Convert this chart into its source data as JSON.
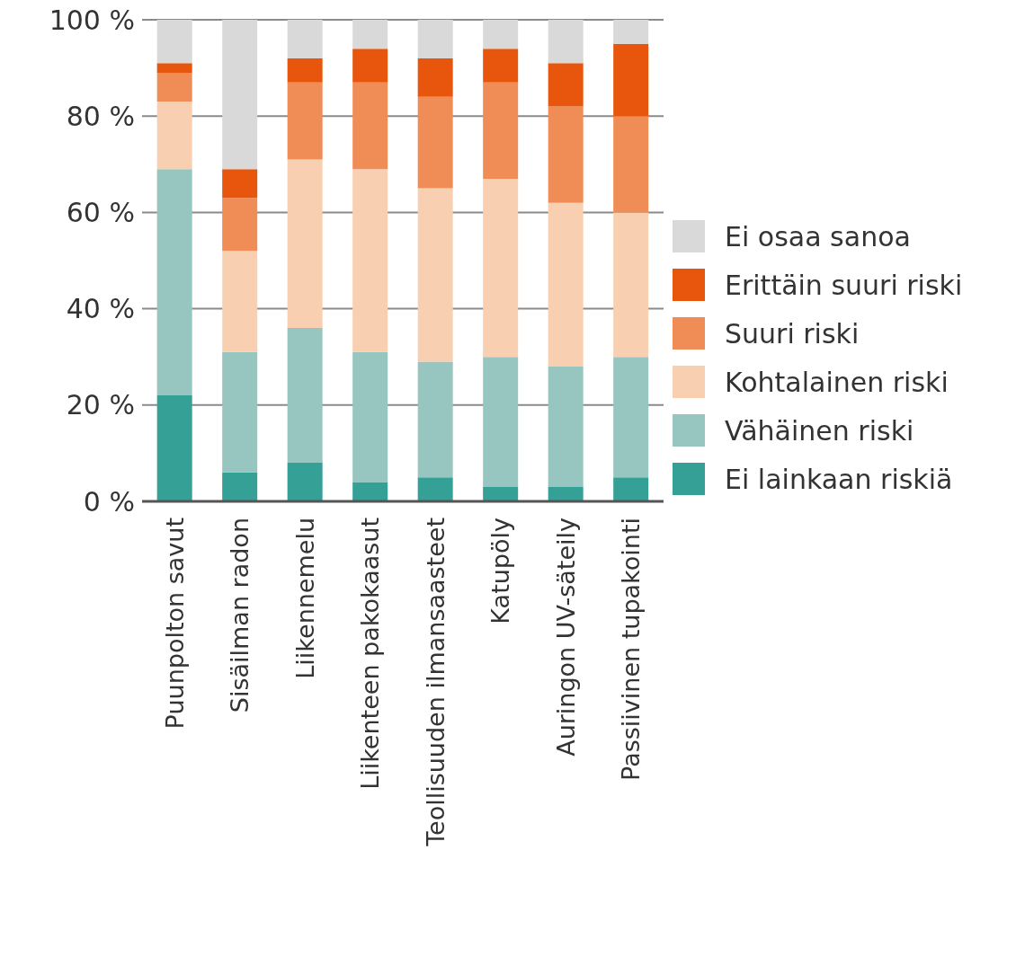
{
  "chart_data": {
    "type": "bar",
    "stacked": true,
    "categories": [
      "Puunpolton savut",
      "Sisäilman radon",
      "Liikennemelu",
      "Liikenteen pakokaasut",
      "Teollisuuden ilmansaasteet",
      "Katupöly",
      "Auringon UV-säteily",
      "Passiivinen tupakointi"
    ],
    "series": [
      {
        "name": "Ei lainkaan riskiä",
        "color": "#35a096",
        "values": [
          22,
          6,
          8,
          4,
          5,
          3,
          3,
          5
        ]
      },
      {
        "name": "Vähäinen riski",
        "color": "#96c6bf",
        "values": [
          47,
          25,
          28,
          27,
          24,
          27,
          25,
          25
        ]
      },
      {
        "name": "Kohtalainen riski",
        "color": "#f9cfb2",
        "values": [
          14,
          21,
          35,
          38,
          36,
          37,
          34,
          30
        ]
      },
      {
        "name": "Suuri riski",
        "color": "#f08c55",
        "values": [
          6,
          11,
          16,
          18,
          19,
          20,
          20,
          20
        ]
      },
      {
        "name": "Erittäin suuri riski",
        "color": "#e8560d",
        "values": [
          2,
          6,
          5,
          7,
          8,
          7,
          9,
          15
        ]
      },
      {
        "name": "Ei osaa sanoa",
        "color": "#d9d9d9",
        "values": [
          9,
          31,
          8,
          6,
          8,
          6,
          9,
          5
        ]
      }
    ],
    "ylim": [
      0,
      100
    ],
    "yticks": [
      {
        "value": 0,
        "label": "0 %"
      },
      {
        "value": 20,
        "label": "20 %"
      },
      {
        "value": 40,
        "label": "40 %"
      },
      {
        "value": 60,
        "label": "60 %"
      },
      {
        "value": 80,
        "label": "80 %"
      },
      {
        "value": 100,
        "label": "100 %"
      }
    ],
    "grid": "y",
    "legend": "right"
  }
}
